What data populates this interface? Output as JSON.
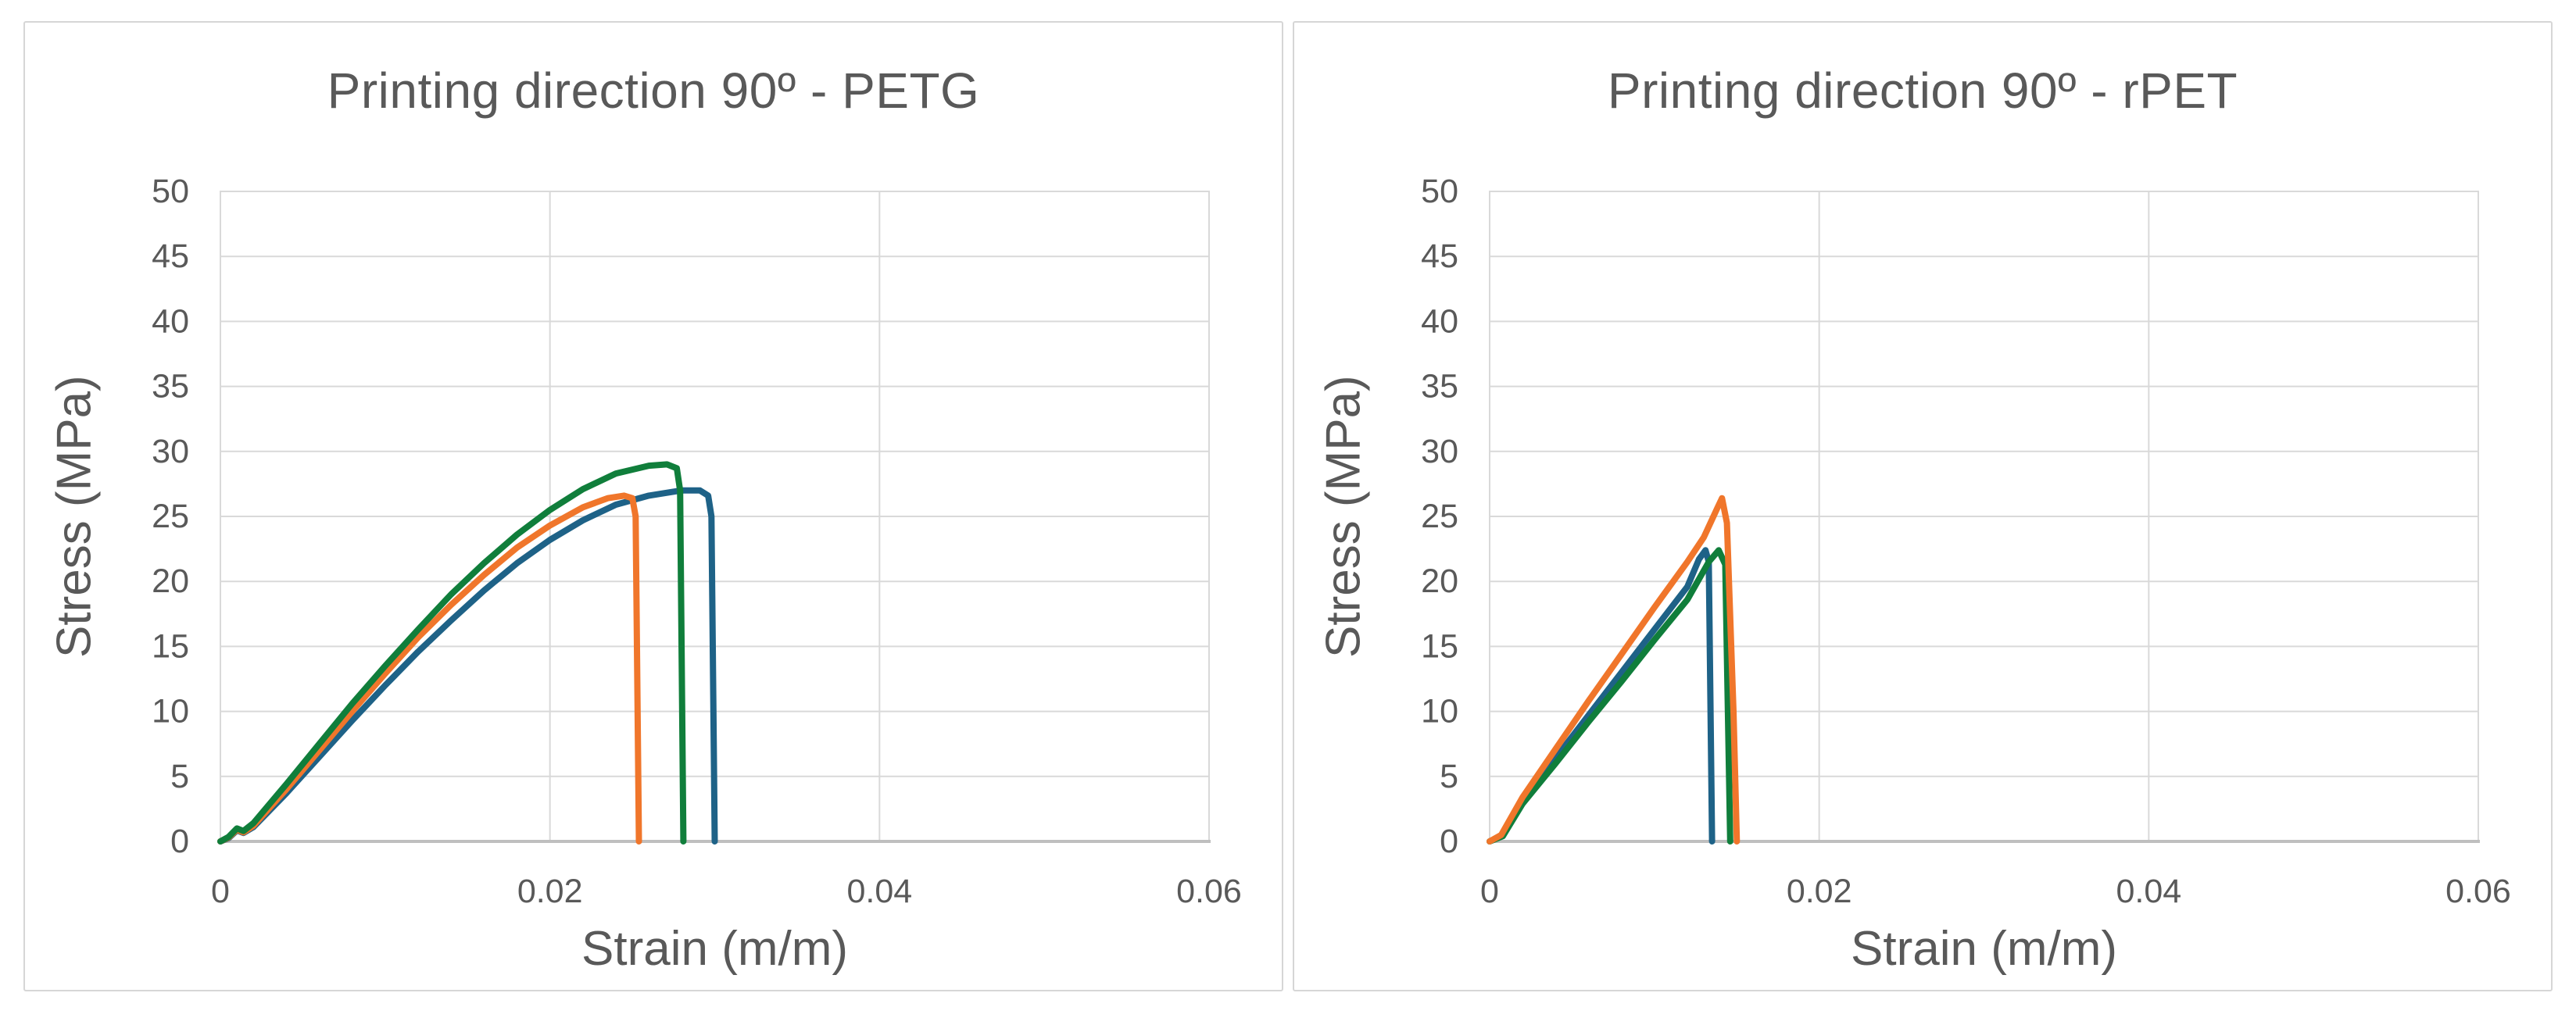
{
  "style": {
    "background": "#ffffff",
    "panel_border": "#d6d6d6",
    "text_color": "#595959",
    "grid_color": "#d9d9d9",
    "axis_line_color": "#bfbfbf",
    "curve_width": 8,
    "curve_colors": {
      "blue": "#1e6287",
      "orange": "#f0762b",
      "green": "#107e3b"
    }
  },
  "chart_data": [
    {
      "type": "line",
      "title": "Printing direction 90º - PETG",
      "xlabel": "Strain (m/m)",
      "ylabel": "Stress (MPa)",
      "xlim": [
        0,
        0.06
      ],
      "ylim": [
        0,
        50
      ],
      "xticks": [
        0,
        0.02,
        0.04,
        0.06
      ],
      "xtick_labels": [
        "0",
        "0.02",
        "0.04",
        "0.06"
      ],
      "yticks": [
        0,
        5,
        10,
        15,
        20,
        25,
        30,
        35,
        40,
        45,
        50
      ],
      "ytick_labels": [
        "0",
        "5",
        "10",
        "15",
        "20",
        "25",
        "30",
        "35",
        "40",
        "45",
        "50"
      ],
      "grid": true,
      "legend": "none",
      "series": [
        {
          "name": "curve-blue",
          "color": "#1e6287",
          "peak_stress_mpa": 27.0,
          "strain_at_break": 0.03,
          "points": [
            [
              0,
              0
            ],
            [
              0.0005,
              0.25
            ],
            [
              0.001,
              0.85
            ],
            [
              0.0014,
              0.65
            ],
            [
              0.002,
              1.1
            ],
            [
              0.004,
              3.7
            ],
            [
              0.006,
              6.5
            ],
            [
              0.008,
              9.3
            ],
            [
              0.01,
              12.0
            ],
            [
              0.012,
              14.6
            ],
            [
              0.014,
              17.0
            ],
            [
              0.016,
              19.3
            ],
            [
              0.018,
              21.4
            ],
            [
              0.02,
              23.2
            ],
            [
              0.022,
              24.7
            ],
            [
              0.024,
              25.9
            ],
            [
              0.026,
              26.6
            ],
            [
              0.028,
              27.0
            ],
            [
              0.0291,
              27.0
            ],
            [
              0.0296,
              26.6
            ],
            [
              0.0298,
              25.0
            ],
            [
              0.03,
              0
            ]
          ]
        },
        {
          "name": "curve-orange",
          "color": "#f0762b",
          "peak_stress_mpa": 26.6,
          "strain_at_break": 0.0254,
          "points": [
            [
              0,
              0
            ],
            [
              0.0005,
              0.3
            ],
            [
              0.001,
              0.9
            ],
            [
              0.0014,
              0.7
            ],
            [
              0.002,
              1.2
            ],
            [
              0.004,
              4.0
            ],
            [
              0.006,
              7.0
            ],
            [
              0.008,
              10.0
            ],
            [
              0.01,
              12.9
            ],
            [
              0.012,
              15.7
            ],
            [
              0.014,
              18.2
            ],
            [
              0.016,
              20.5
            ],
            [
              0.018,
              22.6
            ],
            [
              0.02,
              24.3
            ],
            [
              0.022,
              25.7
            ],
            [
              0.0235,
              26.4
            ],
            [
              0.0245,
              26.6
            ],
            [
              0.025,
              26.4
            ],
            [
              0.0252,
              25.0
            ],
            [
              0.0254,
              0
            ]
          ]
        },
        {
          "name": "curve-green",
          "color": "#107e3b",
          "peak_stress_mpa": 29.0,
          "strain_at_break": 0.0281,
          "points": [
            [
              0,
              0
            ],
            [
              0.0005,
              0.35
            ],
            [
              0.001,
              1.0
            ],
            [
              0.0014,
              0.8
            ],
            [
              0.002,
              1.4
            ],
            [
              0.004,
              4.4
            ],
            [
              0.006,
              7.5
            ],
            [
              0.008,
              10.6
            ],
            [
              0.01,
              13.5
            ],
            [
              0.012,
              16.3
            ],
            [
              0.014,
              19.0
            ],
            [
              0.016,
              21.4
            ],
            [
              0.018,
              23.6
            ],
            [
              0.02,
              25.5
            ],
            [
              0.022,
              27.1
            ],
            [
              0.024,
              28.3
            ],
            [
              0.026,
              28.9
            ],
            [
              0.0271,
              29.0
            ],
            [
              0.0277,
              28.7
            ],
            [
              0.0279,
              27.0
            ],
            [
              0.0281,
              0
            ]
          ]
        }
      ]
    },
    {
      "type": "line",
      "title": "Printing direction 90º - rPET",
      "xlabel": "Strain (m/m)",
      "ylabel": "Stress (MPa)",
      "xlim": [
        0,
        0.06
      ],
      "ylim": [
        0,
        50
      ],
      "xticks": [
        0,
        0.02,
        0.04,
        0.06
      ],
      "xtick_labels": [
        "0",
        "0.02",
        "0.04",
        "0.06"
      ],
      "yticks": [
        0,
        5,
        10,
        15,
        20,
        25,
        30,
        35,
        40,
        45,
        50
      ],
      "ytick_labels": [
        "0",
        "5",
        "10",
        "15",
        "20",
        "25",
        "30",
        "35",
        "40",
        "45",
        "50"
      ],
      "grid": true,
      "legend": "none",
      "series": [
        {
          "name": "curve-blue",
          "color": "#1e6287",
          "peak_stress_mpa": 22.4,
          "strain_at_break": 0.0135,
          "points": [
            [
              0,
              0
            ],
            [
              0.0007,
              0.4
            ],
            [
              0.002,
              3.1
            ],
            [
              0.004,
              6.4
            ],
            [
              0.006,
              9.7
            ],
            [
              0.008,
              13.0
            ],
            [
              0.01,
              16.3
            ],
            [
              0.012,
              19.6
            ],
            [
              0.0127,
              21.7
            ],
            [
              0.0131,
              22.4
            ],
            [
              0.0133,
              21.5
            ],
            [
              0.0135,
              0
            ]
          ]
        },
        {
          "name": "curve-green",
          "color": "#107e3b",
          "peak_stress_mpa": 22.4,
          "strain_at_break": 0.0146,
          "points": [
            [
              0,
              0
            ],
            [
              0.0008,
              0.4
            ],
            [
              0.002,
              2.9
            ],
            [
              0.004,
              6.0
            ],
            [
              0.006,
              9.2
            ],
            [
              0.008,
              12.3
            ],
            [
              0.01,
              15.5
            ],
            [
              0.012,
              18.6
            ],
            [
              0.0133,
              21.5
            ],
            [
              0.0139,
              22.4
            ],
            [
              0.0143,
              21.3
            ],
            [
              0.0146,
              0
            ]
          ]
        },
        {
          "name": "curve-orange",
          "color": "#f0762b",
          "peak_stress_mpa": 26.4,
          "strain_at_break": 0.015,
          "points": [
            [
              0,
              0
            ],
            [
              0.0007,
              0.5
            ],
            [
              0.002,
              3.4
            ],
            [
              0.004,
              7.1
            ],
            [
              0.006,
              10.8
            ],
            [
              0.008,
              14.4
            ],
            [
              0.01,
              18.0
            ],
            [
              0.012,
              21.5
            ],
            [
              0.013,
              23.4
            ],
            [
              0.0138,
              25.6
            ],
            [
              0.0141,
              26.4
            ],
            [
              0.0144,
              24.5
            ],
            [
              0.0148,
              10.0
            ],
            [
              0.015,
              0
            ]
          ]
        }
      ]
    }
  ]
}
